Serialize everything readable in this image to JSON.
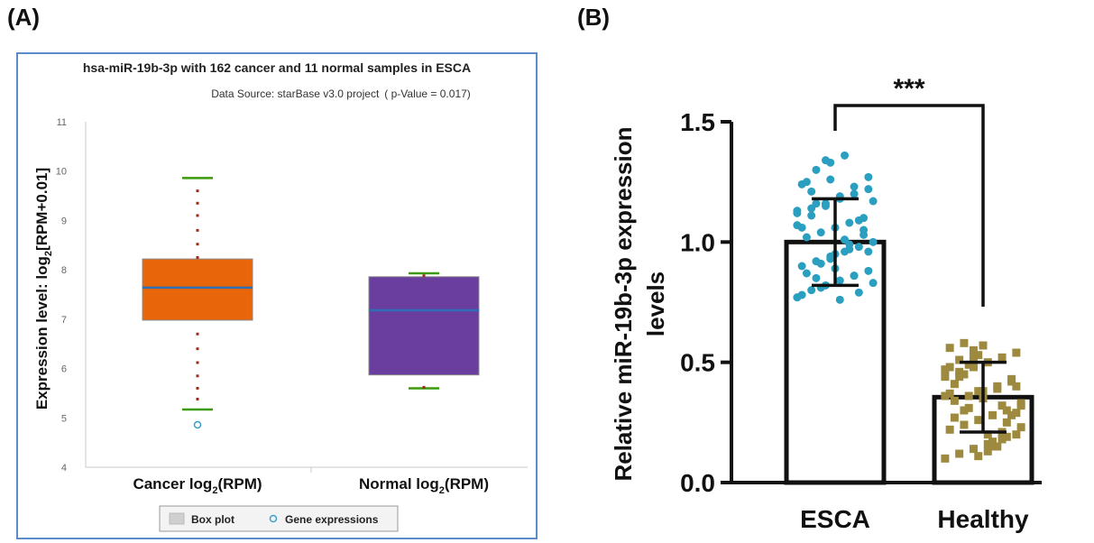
{
  "panels": {
    "a_label": "(A)",
    "b_label": "(B)"
  },
  "chart_data": [
    {
      "type": "box",
      "title": "hsa-miR-19b-3p with 162 cancer and 11 normal samples in ESCA",
      "subtitle": "Data Source: starBase v3.0 project",
      "pvalue_text": "( p-Value = 0.017)",
      "ylabel": "Expression level: log2[RPM+0.01]",
      "ylim": [
        4,
        11
      ],
      "yticks": [
        4,
        5,
        6,
        7,
        8,
        9,
        10,
        11
      ],
      "categories": [
        "Cancer log2(RPM)",
        "Normal log2(RPM)"
      ],
      "boxes": [
        {
          "name": "Cancer",
          "whisker_low": 5.17,
          "q1": 6.98,
          "median": 7.64,
          "q3": 8.22,
          "whisker_high": 9.86,
          "color": "#e8650a",
          "points": [
            5.38,
            5.6,
            5.85,
            6.12,
            6.4,
            6.7,
            8.25,
            8.52,
            8.8,
            9.1,
            9.35,
            9.6
          ],
          "outliers": [
            4.86
          ]
        },
        {
          "name": "Normal",
          "whisker_low": 5.6,
          "q1": 5.87,
          "median": 7.18,
          "q3": 7.86,
          "whisker_high": 7.93,
          "color": "#6a3e9e",
          "points": [
            5.62,
            7.88
          ],
          "outliers": []
        }
      ],
      "legend": [
        "Box plot",
        "Gene expressions"
      ],
      "colors": {
        "whisker": "#3a9a0a",
        "median": "#2f6db5",
        "points": "#9e2a18",
        "outlier": "#3aa0c8",
        "frame": "#5b8cc7"
      }
    },
    {
      "type": "bar",
      "ylabel": "Relative miR-19b-3p expression levels",
      "categories": [
        "ESCA",
        "Healthy"
      ],
      "values": [
        1.0,
        0.355
      ],
      "errors": [
        0.18,
        0.145
      ],
      "ylim": [
        0,
        1.5
      ],
      "yticks": [
        "0.0",
        "0.5",
        "1.0",
        "1.5"
      ],
      "significance": "***",
      "dot_colors": [
        "#2a9fbf",
        "#9e8a3e"
      ],
      "points": [
        [
          0.77,
          0.8,
          0.82,
          0.84,
          0.86,
          0.88,
          0.9,
          0.92,
          0.94,
          0.96,
          0.98,
          1.0,
          1.02,
          1.04,
          1.06,
          1.08,
          1.1,
          1.12,
          1.14,
          1.16,
          1.18,
          1.2,
          1.22,
          1.24,
          1.3,
          1.33,
          1.36,
          0.79,
          0.83,
          0.87,
          0.91,
          0.95,
          0.99,
          1.03,
          1.07,
          1.11,
          1.15,
          1.19,
          1.23,
          1.27,
          0.78,
          0.85,
          0.93,
          1.01,
          1.09,
          1.17,
          1.25,
          0.81,
          0.89,
          0.97,
          1.05,
          1.13,
          1.21,
          1.34,
          0.76,
          0.86,
          0.96,
          1.06,
          1.16,
          1.26
        ],
        [
          0.1,
          0.12,
          0.14,
          0.16,
          0.18,
          0.2,
          0.22,
          0.24,
          0.26,
          0.28,
          0.3,
          0.32,
          0.34,
          0.36,
          0.38,
          0.4,
          0.42,
          0.44,
          0.46,
          0.48,
          0.5,
          0.52,
          0.54,
          0.56,
          0.58,
          0.11,
          0.15,
          0.19,
          0.23,
          0.27,
          0.31,
          0.35,
          0.39,
          0.43,
          0.47,
          0.51,
          0.55,
          0.13,
          0.21,
          0.29,
          0.37,
          0.45,
          0.53,
          0.17,
          0.25,
          0.33,
          0.41,
          0.49,
          0.57,
          0.15,
          0.28,
          0.36,
          0.44,
          0.52,
          0.2,
          0.32,
          0.4,
          0.48,
          0.3,
          0.38
        ]
      ]
    }
  ]
}
